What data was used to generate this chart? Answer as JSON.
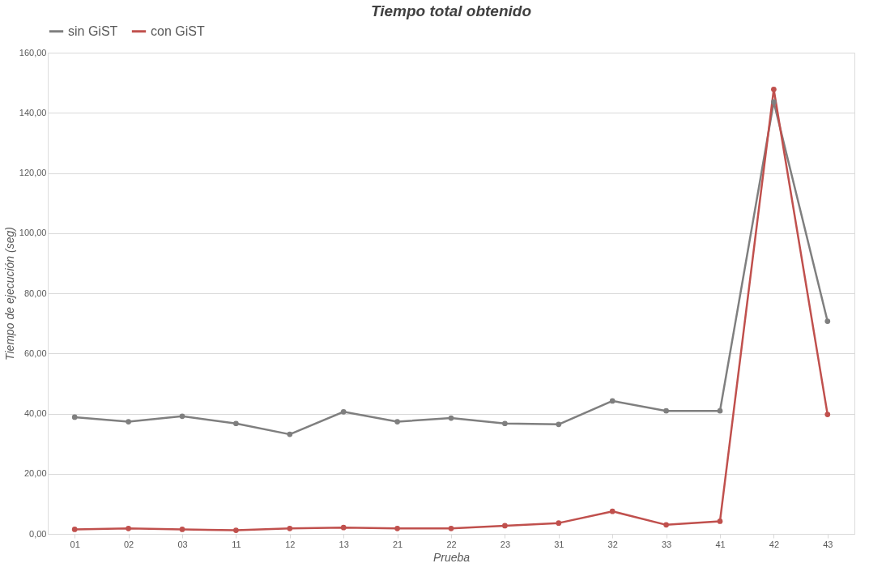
{
  "chart_data": {
    "type": "line",
    "title": "Tiempo total obtenido",
    "xlabel": "Prueba",
    "ylabel": "Tiempo de ejecución (seg)",
    "categories": [
      "01",
      "02",
      "03",
      "11",
      "12",
      "13",
      "21",
      "22",
      "23",
      "31",
      "32",
      "33",
      "41",
      "42",
      "43"
    ],
    "series": [
      {
        "name": "sin GiST",
        "color": "#7f7f7f",
        "values": [
          38.8,
          37.3,
          39.1,
          36.7,
          33.1,
          40.6,
          37.3,
          38.5,
          36.7,
          36.4,
          44.2,
          40.9,
          40.9,
          143.6,
          70.7
        ]
      },
      {
        "name": "con GiST",
        "color": "#c0504d",
        "values": [
          1.5,
          1.8,
          1.5,
          1.2,
          1.8,
          2.1,
          1.8,
          1.8,
          2.7,
          3.6,
          7.5,
          3.0,
          4.2,
          147.8,
          39.7
        ]
      }
    ],
    "ylim": [
      0,
      160
    ],
    "yticks": [
      {
        "value": 0,
        "label": "0,00"
      },
      {
        "value": 20,
        "label": "20,00"
      },
      {
        "value": 40,
        "label": "40,00"
      },
      {
        "value": 60,
        "label": "60,00"
      },
      {
        "value": 80,
        "label": "80,00"
      },
      {
        "value": 100,
        "label": "100,00"
      },
      {
        "value": 120,
        "label": "120,00"
      },
      {
        "value": 140,
        "label": "140,00"
      },
      {
        "value": 160,
        "label": "160,00"
      }
    ],
    "grid": "y",
    "legend": "top",
    "marker": "circle",
    "line_style": "solid"
  }
}
